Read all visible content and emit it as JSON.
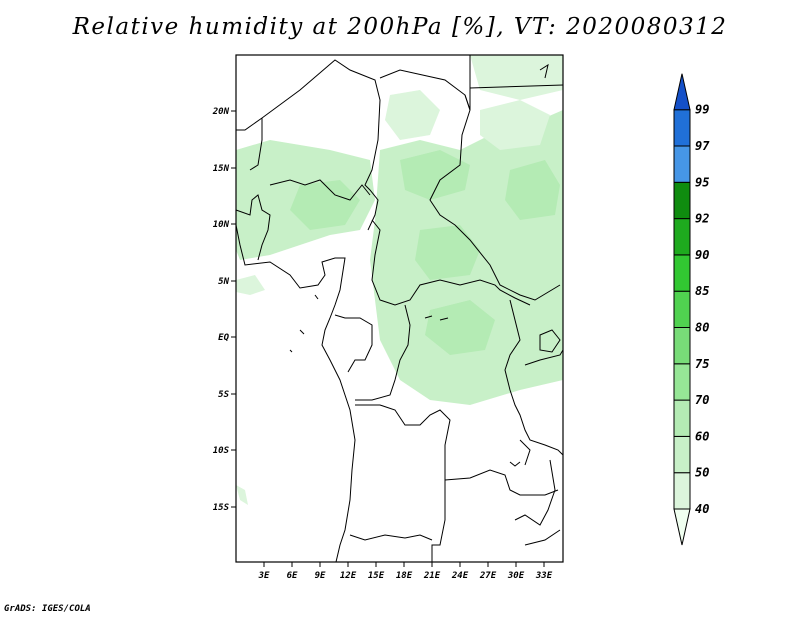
{
  "title": "Relative humidity at 200hPa [%], VT: 2020080312",
  "credit": "GrADS: IGES/COLA",
  "map": {
    "lon_range": [
      0,
      35
    ],
    "lat_range": [
      -20,
      25
    ],
    "x_tick_labels": [
      "3E",
      "6E",
      "9E",
      "12E",
      "15E",
      "18E",
      "21E",
      "24E",
      "27E",
      "30E",
      "33E"
    ],
    "y_tick_labels": [
      "20N",
      "15N",
      "10N",
      "5N",
      "EQ",
      "5S",
      "10S",
      "15S"
    ]
  },
  "colorbar": {
    "levels": [
      "40",
      "50",
      "60",
      "70",
      "75",
      "80",
      "85",
      "90",
      "92",
      "95",
      "97",
      "99"
    ],
    "colors": [
      "#f0fff0",
      "#dcf5dc",
      "#c8f0c8",
      "#b4ebb4",
      "#96e696",
      "#78dc78",
      "#50d250",
      "#32c832",
      "#1eaa1e",
      "#0f8c0f",
      "#4696e6",
      "#2070d8",
      "#1450c8"
    ]
  }
}
